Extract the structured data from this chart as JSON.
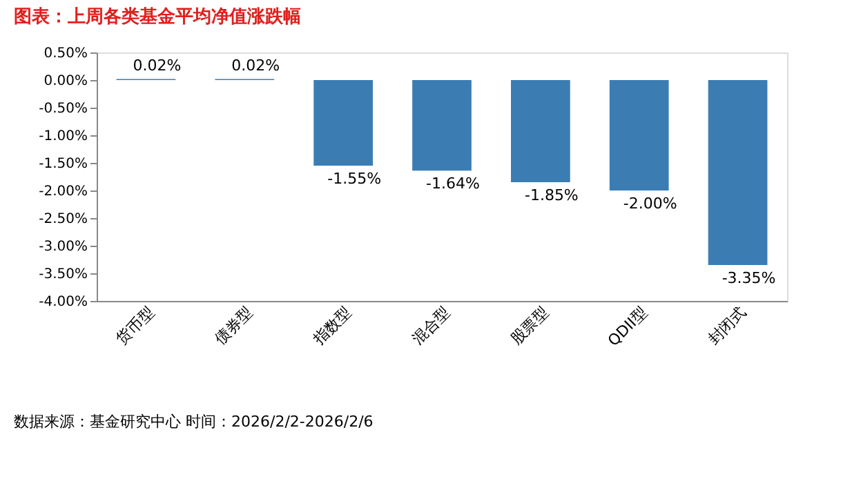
{
  "chart_data": {
    "type": "bar",
    "title": "图表：上周各类基金平均净值涨跌幅",
    "categories": [
      "货币型",
      "债券型",
      "指数型",
      "混合型",
      "股票型",
      "QDII型",
      "封闭式"
    ],
    "values": [
      0.02,
      0.02,
      -1.55,
      -1.64,
      -1.85,
      -2.0,
      -3.35
    ],
    "value_labels": [
      "0.02%",
      "0.02%",
      "-1.55%",
      "-1.64%",
      "-1.85%",
      "-2.00%",
      "-3.35%"
    ],
    "color": "#3b7db3",
    "ylim": [
      -4.0,
      0.5
    ],
    "yticks": [
      {
        "value": 0.5,
        "label": "0.50%"
      },
      {
        "value": 0.0,
        "label": "0.00%"
      },
      {
        "value": -0.5,
        "label": "-0.50%"
      },
      {
        "value": -1.0,
        "label": "-1.00%"
      },
      {
        "value": -1.5,
        "label": "-1.50%"
      },
      {
        "value": -2.0,
        "label": "-2.00%"
      },
      {
        "value": -2.5,
        "label": "-2.50%"
      },
      {
        "value": -3.0,
        "label": "-3.00%"
      },
      {
        "value": -3.5,
        "label": "-3.50%"
      },
      {
        "value": -4.0,
        "label": "-4.00%"
      }
    ],
    "grid": false,
    "annotations": [
      "数据来源：基金研究中心 时间：2026/2/2-2026/2/6"
    ]
  }
}
